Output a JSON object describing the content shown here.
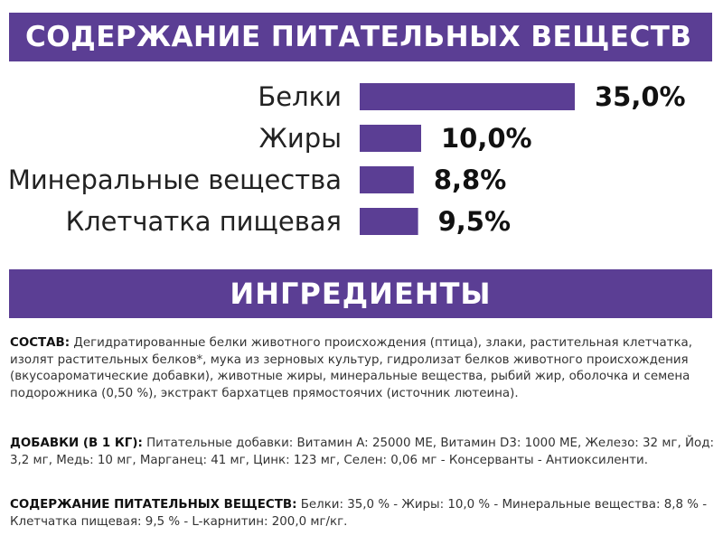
{
  "header": {
    "title": "СОДЕРЖАНИЕ ПИТАТЕЛЬНЫХ ВЕЩЕСТВ"
  },
  "chart_data": {
    "type": "bar",
    "orientation": "horizontal",
    "categories": [
      "Белки",
      "Жиры",
      "Минеральные вещества",
      "Клетчатка пищевая"
    ],
    "values": [
      35.0,
      10.0,
      8.8,
      9.5
    ],
    "value_labels": [
      "35,0%",
      "10,0%",
      "8,8%",
      "9,5%"
    ],
    "unit": "%",
    "title": "СОДЕРЖАНИЕ ПИТАТЕЛЬНЫХ ВЕЩЕСТВ",
    "xlabel": "",
    "ylabel": "",
    "grid": false,
    "bar_color": "#5b3e94"
  },
  "ingredients": {
    "title": "ИНГРЕДИЕНТЫ",
    "composition_label": "СОСТАВ:",
    "composition_text": " Дегидратированные белки животного происхождения (птица), злаки, растительная клетчатка, изолят растительных белков*, мука из зерновых культур, гидролизат белков животного происхождения (вкусоароматические добавки), животные жиры, минеральные вещества, рыбий жир, оболочка и семена подорожника (0,50 %), экстракт бархатцев прямостоячих (источник лютеина).",
    "additives_label": "ДОБАВКИ (В 1 КГ):",
    "additives_text": " Питательные добавки: Витамин A: 25000 МЕ, Витамин D3: 1000 МЕ, Железо: 32 мг, Йод: 3,2 мг, Медь: 10 мг, Марганец: 41 мг, Цинк: 123 мг, Селен: 0,06 мг - Консерванты - Антиоксиленти.",
    "nutrients_label": "СОДЕРЖАНИЕ ПИТАТЕЛЬНЫХ ВЕЩЕСТВ:",
    "nutrients_text": " Белки: 35,0 % - Жиры: 10,0 % - Минеральные вещества: 8,8 % - Клетчатка пищевая: 9,5 % - L-карнитин: 200,0 мг/кг."
  },
  "colors": {
    "accent": "#5b3e94",
    "text": "#222222"
  }
}
